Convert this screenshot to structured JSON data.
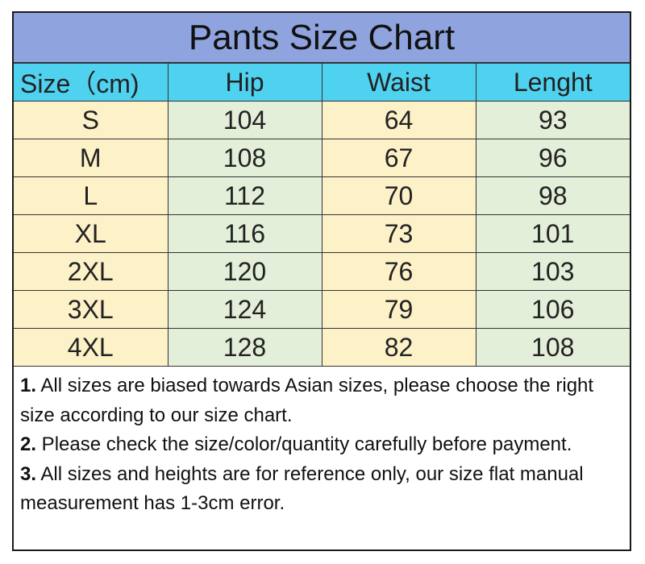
{
  "title": "Pants Size Chart",
  "colors": {
    "title_bg": "#8fa3de",
    "header_bg": "#4fd2f0",
    "yellow_col": "#fdf1c8",
    "green_col": "#e4efd9"
  },
  "table": {
    "headers": [
      "Size（cm)",
      "Hip",
      "Waist",
      "Lenght"
    ],
    "rows": [
      [
        "S",
        "104",
        "64",
        "93"
      ],
      [
        "M",
        "108",
        "67",
        "96"
      ],
      [
        "L",
        "112",
        "70",
        "98"
      ],
      [
        "XL",
        "116",
        "73",
        "101"
      ],
      [
        "2XL",
        "120",
        "76",
        "103"
      ],
      [
        "3XL",
        "124",
        "79",
        "106"
      ],
      [
        "4XL",
        "128",
        "82",
        "108"
      ]
    ]
  },
  "notes": [
    {
      "num": "1.",
      "text": " All sizes are biased towards Asian sizes, please choose the right size according to our size chart."
    },
    {
      "num": "2.",
      "text": " Please check the size/color/quantity carefully before payment."
    },
    {
      "num": "3.",
      "text": " All sizes and heights are for reference only, our size flat manual measurement has 1-3cm error."
    }
  ]
}
